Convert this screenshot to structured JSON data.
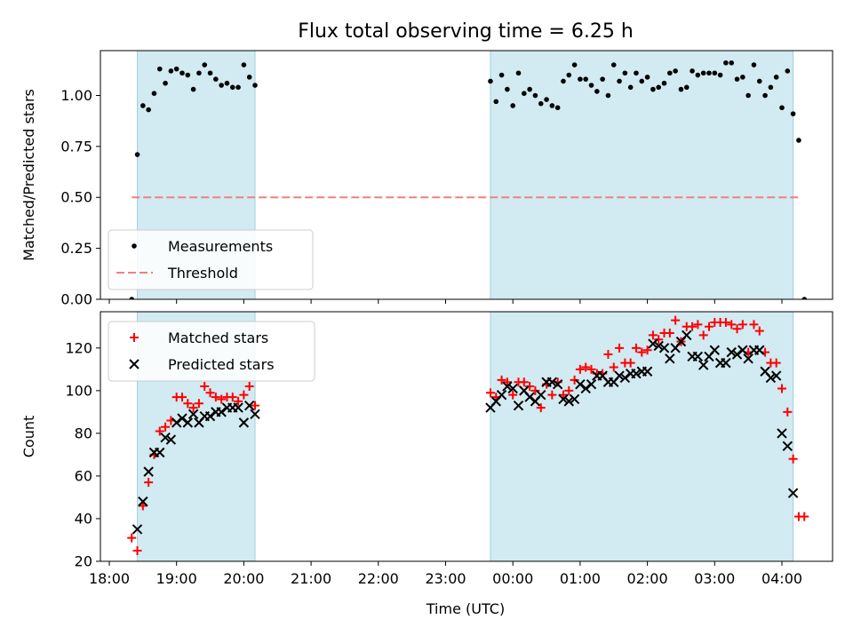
{
  "figure": {
    "title": "Flux total observing time = 6.25 h"
  },
  "chart_data": [
    {
      "type": "scatter",
      "title": "Flux total observing time = 6.25 h",
      "ylabel": "Matched/Predicted stars",
      "xlabel": "",
      "ylim": [
        0,
        1.22
      ],
      "yticks": [
        "0.00",
        "0.25",
        "0.50",
        "0.75",
        "1.00"
      ],
      "ytick_values": [
        0,
        0.25,
        0.5,
        0.75,
        1.0
      ],
      "shaded_intervals": [
        [
          "18:25",
          "20:10"
        ],
        [
          "23:40",
          "04:10"
        ]
      ],
      "shade_color": "#add8e6",
      "threshold": {
        "name": "Threshold",
        "value": 0.5,
        "x_start": "18:20",
        "x_end": "04:15",
        "color": "#f08080",
        "style": "dashed"
      },
      "legend": {
        "position": "bottom-left",
        "entries": [
          "Measurements",
          "Threshold"
        ]
      },
      "series": [
        {
          "name": "Measurements",
          "color": "#000000",
          "marker": "dot",
          "points": [
            [
              "18:20",
              0.0
            ],
            [
              "18:25",
              0.71
            ],
            [
              "18:30",
              0.95
            ],
            [
              "18:35",
              0.93
            ],
            [
              "18:40",
              1.01
            ],
            [
              "18:45",
              1.13
            ],
            [
              "18:50",
              1.06
            ],
            [
              "18:55",
              1.12
            ],
            [
              "19:00",
              1.13
            ],
            [
              "19:05",
              1.11
            ],
            [
              "19:10",
              1.1
            ],
            [
              "19:15",
              1.03
            ],
            [
              "19:20",
              1.11
            ],
            [
              "19:25",
              1.15
            ],
            [
              "19:30",
              1.11
            ],
            [
              "19:35",
              1.08
            ],
            [
              "19:40",
              1.05
            ],
            [
              "19:45",
              1.06
            ],
            [
              "19:50",
              1.04
            ],
            [
              "19:55",
              1.04
            ],
            [
              "20:00",
              1.15
            ],
            [
              "20:05",
              1.09
            ],
            [
              "20:10",
              1.05
            ],
            [
              "23:40",
              1.07
            ],
            [
              "23:45",
              0.97
            ],
            [
              "23:50",
              1.1
            ],
            [
              "23:55",
              1.03
            ],
            [
              "00:00",
              0.95
            ],
            [
              "00:05",
              1.11
            ],
            [
              "00:10",
              1.01
            ],
            [
              "00:15",
              1.03
            ],
            [
              "00:20",
              1.0
            ],
            [
              "00:25",
              0.96
            ],
            [
              "00:30",
              0.98
            ],
            [
              "00:35",
              0.95
            ],
            [
              "00:40",
              0.94
            ],
            [
              "00:45",
              1.07
            ],
            [
              "00:50",
              1.1
            ],
            [
              "00:55",
              1.15
            ],
            [
              "01:00",
              1.08
            ],
            [
              "01:05",
              1.08
            ],
            [
              "01:10",
              1.05
            ],
            [
              "01:15",
              1.02
            ],
            [
              "01:20",
              1.08
            ],
            [
              "01:25",
              1.0
            ],
            [
              "01:30",
              1.15
            ],
            [
              "01:35",
              1.07
            ],
            [
              "01:40",
              1.11
            ],
            [
              "01:45",
              1.04
            ],
            [
              "01:50",
              1.11
            ],
            [
              "01:55",
              1.07
            ],
            [
              "02:00",
              1.09
            ],
            [
              "02:05",
              1.03
            ],
            [
              "02:10",
              1.04
            ],
            [
              "02:15",
              1.06
            ],
            [
              "02:20",
              1.11
            ],
            [
              "02:25",
              1.12
            ],
            [
              "02:30",
              1.03
            ],
            [
              "02:35",
              1.04
            ],
            [
              "02:40",
              1.12
            ],
            [
              "02:45",
              1.1
            ],
            [
              "02:50",
              1.11
            ],
            [
              "02:55",
              1.11
            ],
            [
              "03:00",
              1.11
            ],
            [
              "03:05",
              1.1
            ],
            [
              "03:10",
              1.16
            ],
            [
              "03:15",
              1.16
            ],
            [
              "03:20",
              1.08
            ],
            [
              "03:25",
              1.09
            ],
            [
              "03:30",
              1.0
            ],
            [
              "03:35",
              1.15
            ],
            [
              "03:40",
              1.07
            ],
            [
              "03:45",
              1.0
            ],
            [
              "03:50",
              1.04
            ],
            [
              "03:55",
              1.09
            ],
            [
              "04:00",
              0.94
            ],
            [
              "04:05",
              1.12
            ],
            [
              "04:10",
              0.91
            ],
            [
              "04:15",
              0.78
            ],
            [
              "04:20",
              0.0
            ]
          ]
        }
      ]
    },
    {
      "type": "scatter",
      "ylabel": "Count",
      "xlabel": "Time (UTC)",
      "ylim": [
        20,
        137
      ],
      "yticks": [
        "20",
        "40",
        "60",
        "80",
        "100",
        "120"
      ],
      "ytick_values": [
        20,
        40,
        60,
        80,
        100,
        120
      ],
      "xticks": [
        "18:00",
        "19:00",
        "20:00",
        "21:00",
        "22:00",
        "23:00",
        "00:00",
        "01:00",
        "02:00",
        "03:00",
        "04:00"
      ],
      "xlim": [
        "17:50",
        "04:45"
      ],
      "shaded_intervals": [
        [
          "18:25",
          "20:10"
        ],
        [
          "23:40",
          "04:10"
        ]
      ],
      "shade_color": "#add8e6",
      "legend": {
        "position": "top-left",
        "entries": [
          "Matched stars",
          "Predicted stars"
        ]
      },
      "series": [
        {
          "name": "Matched stars",
          "color": "#ff0000",
          "marker": "plus",
          "points": [
            [
              "18:20",
              31
            ],
            [
              "18:25",
              25
            ],
            [
              "18:30",
              46
            ],
            [
              "18:35",
              57
            ],
            [
              "18:40",
              70
            ],
            [
              "18:45",
              81
            ],
            [
              "18:50",
              83
            ],
            [
              "18:55",
              86
            ],
            [
              "19:00",
              97
            ],
            [
              "19:05",
              97
            ],
            [
              "19:10",
              94
            ],
            [
              "19:15",
              92
            ],
            [
              "19:20",
              94
            ],
            [
              "19:25",
              102
            ],
            [
              "19:30",
              99
            ],
            [
              "19:35",
              97
            ],
            [
              "19:40",
              96
            ],
            [
              "19:45",
              97
            ],
            [
              "19:50",
              97
            ],
            [
              "19:55",
              95
            ],
            [
              "20:00",
              98
            ],
            [
              "20:05",
              102
            ],
            [
              "20:10",
              93
            ],
            [
              "23:40",
              99
            ],
            [
              "23:45",
              97
            ],
            [
              "23:50",
              105
            ],
            [
              "23:55",
              104
            ],
            [
              "00:00",
              98
            ],
            [
              "00:05",
              104
            ],
            [
              "00:10",
              104
            ],
            [
              "00:15",
              102
            ],
            [
              "00:20",
              100
            ],
            [
              "00:25",
              92
            ],
            [
              "00:30",
              103
            ],
            [
              "00:35",
              98
            ],
            [
              "00:40",
              104
            ],
            [
              "00:45",
              98
            ],
            [
              "00:50",
              100
            ],
            [
              "00:55",
              105
            ],
            [
              "01:00",
              110
            ],
            [
              "01:05",
              111
            ],
            [
              "01:10",
              110
            ],
            [
              "01:15",
              108
            ],
            [
              "01:20",
              108
            ],
            [
              "01:25",
              117
            ],
            [
              "01:30",
              111
            ],
            [
              "01:35",
              120
            ],
            [
              "01:40",
              113
            ],
            [
              "01:45",
              113
            ],
            [
              "01:50",
              120
            ],
            [
              "01:55",
              118
            ],
            [
              "02:00",
              119
            ],
            [
              "02:05",
              126
            ],
            [
              "02:10",
              124
            ],
            [
              "02:15",
              127
            ],
            [
              "02:20",
              127
            ],
            [
              "02:25",
              133
            ],
            [
              "02:30",
              123
            ],
            [
              "02:35",
              130
            ],
            [
              "02:40",
              130
            ],
            [
              "02:45",
              131
            ],
            [
              "02:50",
              126
            ],
            [
              "02:55",
              130
            ],
            [
              "03:00",
              132
            ],
            [
              "03:05",
              132
            ],
            [
              "03:10",
              132
            ],
            [
              "03:15",
              131
            ],
            [
              "03:20",
              129
            ],
            [
              "03:25",
              131
            ],
            [
              "03:30",
              118
            ],
            [
              "03:35",
              131
            ],
            [
              "03:40",
              128
            ],
            [
              "03:45",
              118
            ],
            [
              "03:50",
              113
            ],
            [
              "03:55",
              113
            ],
            [
              "04:00",
              101
            ],
            [
              "04:05",
              90
            ],
            [
              "04:10",
              68
            ],
            [
              "04:15",
              41
            ],
            [
              "04:20",
              41
            ]
          ]
        },
        {
          "name": "Predicted stars",
          "color": "#000000",
          "marker": "x",
          "points": [
            [
              "18:25",
              35
            ],
            [
              "18:30",
              48
            ],
            [
              "18:35",
              62
            ],
            [
              "18:40",
              71
            ],
            [
              "18:45",
              71
            ],
            [
              "18:50",
              78
            ],
            [
              "18:55",
              77
            ],
            [
              "19:00",
              85
            ],
            [
              "19:05",
              87
            ],
            [
              "19:10",
              85
            ],
            [
              "19:15",
              89
            ],
            [
              "19:20",
              85
            ],
            [
              "19:25",
              88
            ],
            [
              "19:30",
              88
            ],
            [
              "19:35",
              90
            ],
            [
              "19:40",
              90
            ],
            [
              "19:45",
              92
            ],
            [
              "19:50",
              92
            ],
            [
              "19:55",
              92
            ],
            [
              "20:00",
              85
            ],
            [
              "20:05",
              93
            ],
            [
              "20:10",
              89
            ],
            [
              "23:40",
              92
            ],
            [
              "23:45",
              95
            ],
            [
              "23:50",
              98
            ],
            [
              "23:55",
              102
            ],
            [
              "00:00",
              101
            ],
            [
              "00:05",
              93
            ],
            [
              "00:10",
              100
            ],
            [
              "00:15",
              97
            ],
            [
              "00:20",
              95
            ],
            [
              "00:25",
              98
            ],
            [
              "00:30",
              104
            ],
            [
              "00:35",
              104
            ],
            [
              "00:40",
              103
            ],
            [
              "00:45",
              96
            ],
            [
              "00:50",
              95
            ],
            [
              "00:55",
              96
            ],
            [
              "01:00",
              103
            ],
            [
              "01:05",
              101
            ],
            [
              "01:10",
              103
            ],
            [
              "01:15",
              107
            ],
            [
              "01:20",
              107
            ],
            [
              "01:25",
              104
            ],
            [
              "01:30",
              104
            ],
            [
              "01:35",
              107
            ],
            [
              "01:40",
              106
            ],
            [
              "01:45",
              108
            ],
            [
              "01:50",
              108
            ],
            [
              "01:55",
              109
            ],
            [
              "02:00",
              109
            ],
            [
              "02:05",
              122
            ],
            [
              "02:10",
              121
            ],
            [
              "02:15",
              120
            ],
            [
              "02:20",
              115
            ],
            [
              "02:25",
              120
            ],
            [
              "02:30",
              123
            ],
            [
              "02:35",
              126
            ],
            [
              "02:40",
              116
            ],
            [
              "02:45",
              116
            ],
            [
              "02:50",
              112
            ],
            [
              "02:55",
              116
            ],
            [
              "03:00",
              119
            ],
            [
              "03:05",
              113
            ],
            [
              "03:10",
              113
            ],
            [
              "03:15",
              118
            ],
            [
              "03:20",
              117
            ],
            [
              "03:25",
              119
            ],
            [
              "03:30",
              115
            ],
            [
              "03:35",
              119
            ],
            [
              "03:40",
              119
            ],
            [
              "03:45",
              109
            ],
            [
              "03:50",
              106
            ],
            [
              "03:55",
              107
            ],
            [
              "04:00",
              80
            ],
            [
              "04:05",
              74
            ],
            [
              "04:10",
              52
            ]
          ]
        }
      ]
    }
  ]
}
